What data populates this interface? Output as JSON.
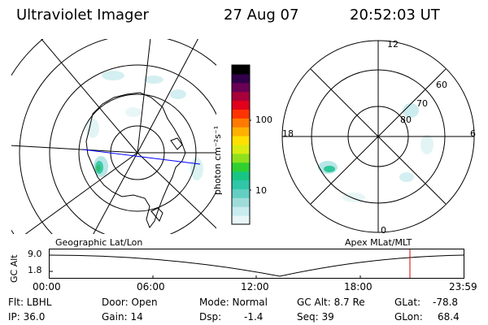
{
  "header": {
    "instrument": "Ultraviolet Imager",
    "date": "27 Aug 07",
    "time": "20:52:03 UT"
  },
  "left_map": {
    "caption": "Geographic Lat/Lon"
  },
  "colorbar": {
    "unit_label": "photon cm⁻²s⁻¹",
    "tick_labels": [
      "100",
      "10"
    ],
    "tick_values": [
      100,
      10
    ],
    "scale": "log",
    "colors": [
      "#e8f6f7",
      "#c8ecef",
      "#9fdcd9",
      "#63cfc2",
      "#2fc7a8",
      "#17c684",
      "#2fd02f",
      "#8fe01c",
      "#d8ec10",
      "#ffe000",
      "#ffb000",
      "#ff7a00",
      "#ff3300",
      "#e0001c",
      "#a8003a",
      "#6a0055",
      "#30004a",
      "#000000"
    ]
  },
  "right_map": {
    "caption": "Apex MLat/MLT",
    "mlt_labels": {
      "top": "12",
      "left": "18",
      "right": "6",
      "bottom": "0"
    },
    "lat_labels": [
      "60",
      "70",
      "80"
    ]
  },
  "altitude_plot": {
    "ylabel": "GC Alt",
    "yticks": [
      "9.0",
      "1.8"
    ],
    "xticks": [
      "00:00",
      "06:00",
      "12:00",
      "18:00",
      "23:59"
    ],
    "marker_time": "20:52"
  },
  "footer": {
    "filter": "Flt: LBHL",
    "ip": "IP: 36.0",
    "door": "Door: Open",
    "gain": "Gain: 14",
    "mode": "Mode: Normal",
    "dsp_label": "Dsp:",
    "dsp_value": "-1.4",
    "gc_alt": "GC Alt: 8.7 Re",
    "seq": "Seq: 39",
    "glat_label": "GLat:",
    "glat_value": "-78.8",
    "glon_label": "GLon:",
    "glon_value": "68.4"
  }
}
